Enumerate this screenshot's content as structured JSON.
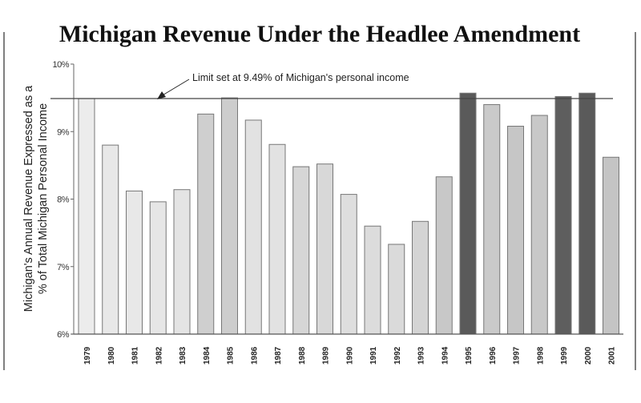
{
  "chart_data": {
    "type": "bar",
    "title": "Michigan Revenue Under the Headlee Amendment",
    "ylabel_line1": "Michigan's Annual Revenue Expressed as a",
    "ylabel_line2": "% of Total Michigan Personal Income",
    "xlabel": "",
    "ylim": [
      6,
      10
    ],
    "yticks": [
      "6%",
      "7%",
      "8%",
      "9%",
      "10%"
    ],
    "yticks_values": [
      6,
      7,
      8,
      9,
      10
    ],
    "grid": false,
    "categories": [
      "1979",
      "1980",
      "1981",
      "1982",
      "1983",
      "1984",
      "1985",
      "1986",
      "1987",
      "1988",
      "1989",
      "1990",
      "1991",
      "1992",
      "1993",
      "1994",
      "1995",
      "1996",
      "1997",
      "1998",
      "1999",
      "2000",
      "2001"
    ],
    "values": [
      9.49,
      8.8,
      8.12,
      7.96,
      8.14,
      9.26,
      9.5,
      9.17,
      8.81,
      8.48,
      8.52,
      8.07,
      7.6,
      7.33,
      7.67,
      8.33,
      9.57,
      9.4,
      9.08,
      9.24,
      9.52,
      9.57,
      8.62
    ],
    "colors": [
      "#ececec",
      "#e8e8e8",
      "#e8e8e8",
      "#e6e6e6",
      "#e4e4e4",
      "#cfcfcf",
      "#cdcdcd",
      "#e2e2e2",
      "#e2e2e2",
      "#d6d6d6",
      "#d8d8d8",
      "#dedede",
      "#dcdcdc",
      "#dadada",
      "#d4d4d4",
      "#c8c8c8",
      "#5a5a5a",
      "#cacaca",
      "#c6c6c6",
      "#c8c8c8",
      "#5e5e5e",
      "#5a5a5a",
      "#c4c4c4"
    ],
    "reference_line": {
      "value": 9.49,
      "label": "Limit set at 9.49% of Michigan's personal income"
    }
  }
}
